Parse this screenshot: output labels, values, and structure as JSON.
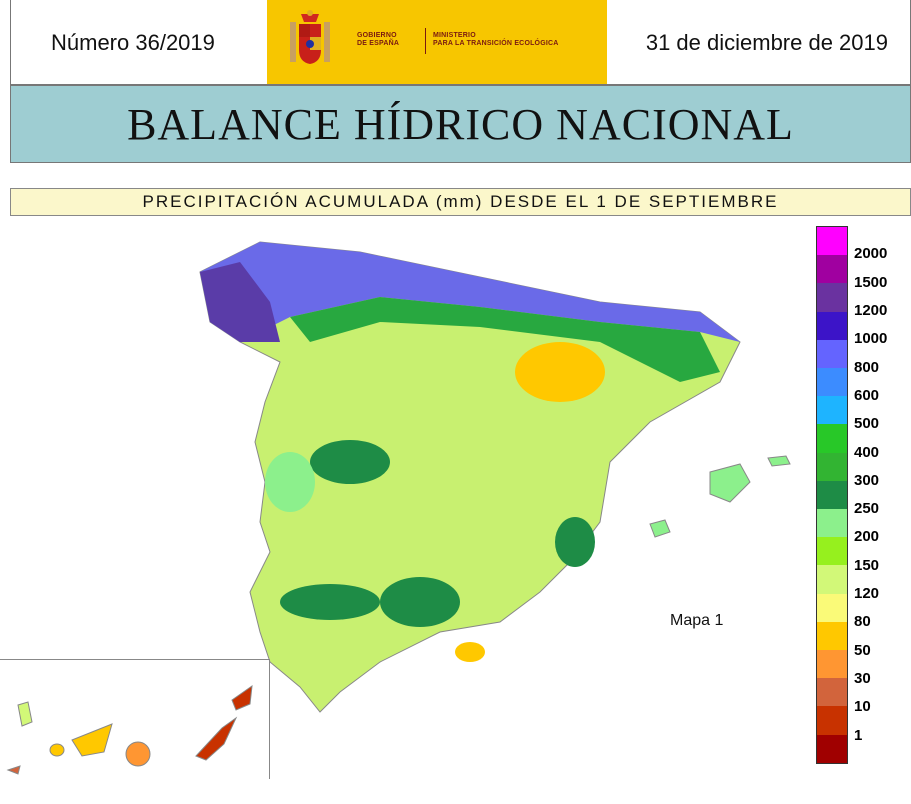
{
  "header": {
    "issue": "Número 36/2019",
    "date": "31 de diciembre de 2019",
    "logo_left_line1": "GOBIERNO",
    "logo_left_line2": "DE ESPAÑA",
    "logo_right_line1": "MINISTERIO",
    "logo_right_line2": "PARA LA TRANSICIÓN ECOLÓGICA",
    "logo_color": "#f7c600"
  },
  "banner": {
    "title": "BALANCE HÍDRICO NACIONAL",
    "color": "#9ecdd2"
  },
  "subtitle": "PRECIPITACIÓN ACUMULADA (mm) DESDE EL 1 DE SEPTIEMBRE",
  "map_label": "Mapa 1",
  "legend": [
    {
      "label": "2000",
      "color": "#ff00ff"
    },
    {
      "label": "1500",
      "color": "#a000a0"
    },
    {
      "label": "1200",
      "color": "#6a32a0"
    },
    {
      "label": "1000",
      "color": "#3c14c8"
    },
    {
      "label": "800",
      "color": "#6464ff"
    },
    {
      "label": "600",
      "color": "#3c8cff"
    },
    {
      "label": "500",
      "color": "#1eb4ff"
    },
    {
      "label": "400",
      "color": "#28c828"
    },
    {
      "label": "300",
      "color": "#32b432"
    },
    {
      "label": "250",
      "color": "#1e8c46"
    },
    {
      "label": "200",
      "color": "#8cf08c"
    },
    {
      "label": "150",
      "color": "#96f01e"
    },
    {
      "label": "120",
      "color": "#d2f878"
    },
    {
      "label": "80",
      "color": "#fafa78"
    },
    {
      "label": "50",
      "color": "#ffc800"
    },
    {
      "label": "30",
      "color": "#ff9632"
    },
    {
      "label": "10",
      "color": "#d2643c"
    },
    {
      "label": "1",
      "color": "#c83200"
    },
    {
      "label": "",
      "color": "#a00000"
    }
  ]
}
